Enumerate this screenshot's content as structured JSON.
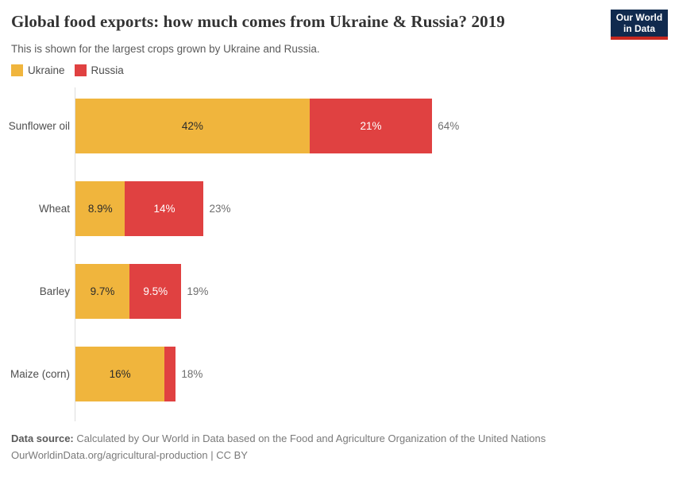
{
  "header": {
    "title": "Global food exports: how much comes from Ukraine & Russia? 2019",
    "subtitle": "This is shown for the largest crops grown by Ukraine and Russia.",
    "logo": {
      "line1": "Our World",
      "line2": "in Data",
      "bg_color": "#102A4E",
      "stripe_color": "#C7281F"
    }
  },
  "legend": {
    "items": [
      {
        "label": "Ukraine",
        "color": "#F0B53D"
      },
      {
        "label": "Russia",
        "color": "#E04141"
      }
    ]
  },
  "chart_data": {
    "type": "bar",
    "orientation": "horizontal",
    "stacked": true,
    "grid": false,
    "legend_position": "top-left",
    "value_unit": "%",
    "xlim": [
      0,
      64
    ],
    "categories": [
      "Sunflower oil",
      "Wheat",
      "Barley",
      "Maize (corn)"
    ],
    "series": [
      {
        "name": "Ukraine",
        "color": "#F0B53D",
        "values": [
          42,
          8.9,
          9.7,
          16
        ],
        "labels": [
          "42%",
          "8.9%",
          "9.7%",
          "16%"
        ]
      },
      {
        "name": "Russia",
        "color": "#E04141",
        "values": [
          21,
          14,
          9.5,
          2
        ],
        "labels": [
          "21%",
          "14%",
          "9.5%",
          ""
        ]
      }
    ],
    "totals": [
      64,
      23,
      19,
      18
    ],
    "total_labels": [
      "64%",
      "23%",
      "19%",
      "18%"
    ]
  },
  "footer": {
    "source_label": "Data source:",
    "source_text": "Calculated by Our World in Data based on the Food and Agriculture Organization of the United Nations",
    "citation": "OurWorldinData.org/agricultural-production | CC BY"
  },
  "layout_colors": {
    "axis_line": "#dddddd",
    "title_text": "#333333",
    "muted_text": "#6e6e6e"
  }
}
